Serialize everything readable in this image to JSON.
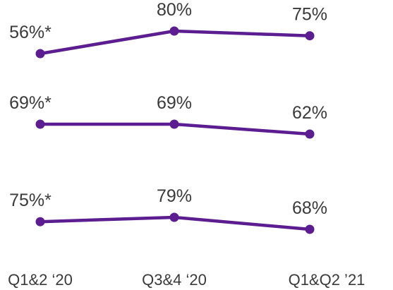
{
  "chart_data": {
    "type": "line",
    "x": [
      "Q1&2 ‘20",
      "Q3&4 ‘20",
      "Q1&Q2 ’21"
    ],
    "series": [
      {
        "values": [
          56,
          80,
          75
        ],
        "labels": [
          "56%*",
          "80%",
          "75%"
        ]
      },
      {
        "values": [
          69,
          69,
          62
        ],
        "labels": [
          "69%*",
          "69%",
          "62%"
        ]
      },
      {
        "values": [
          75,
          79,
          68
        ],
        "labels": [
          "75%*",
          "79%",
          "68%"
        ]
      }
    ],
    "color": "#5b1d8f",
    "grid": false,
    "legend": "none"
  }
}
